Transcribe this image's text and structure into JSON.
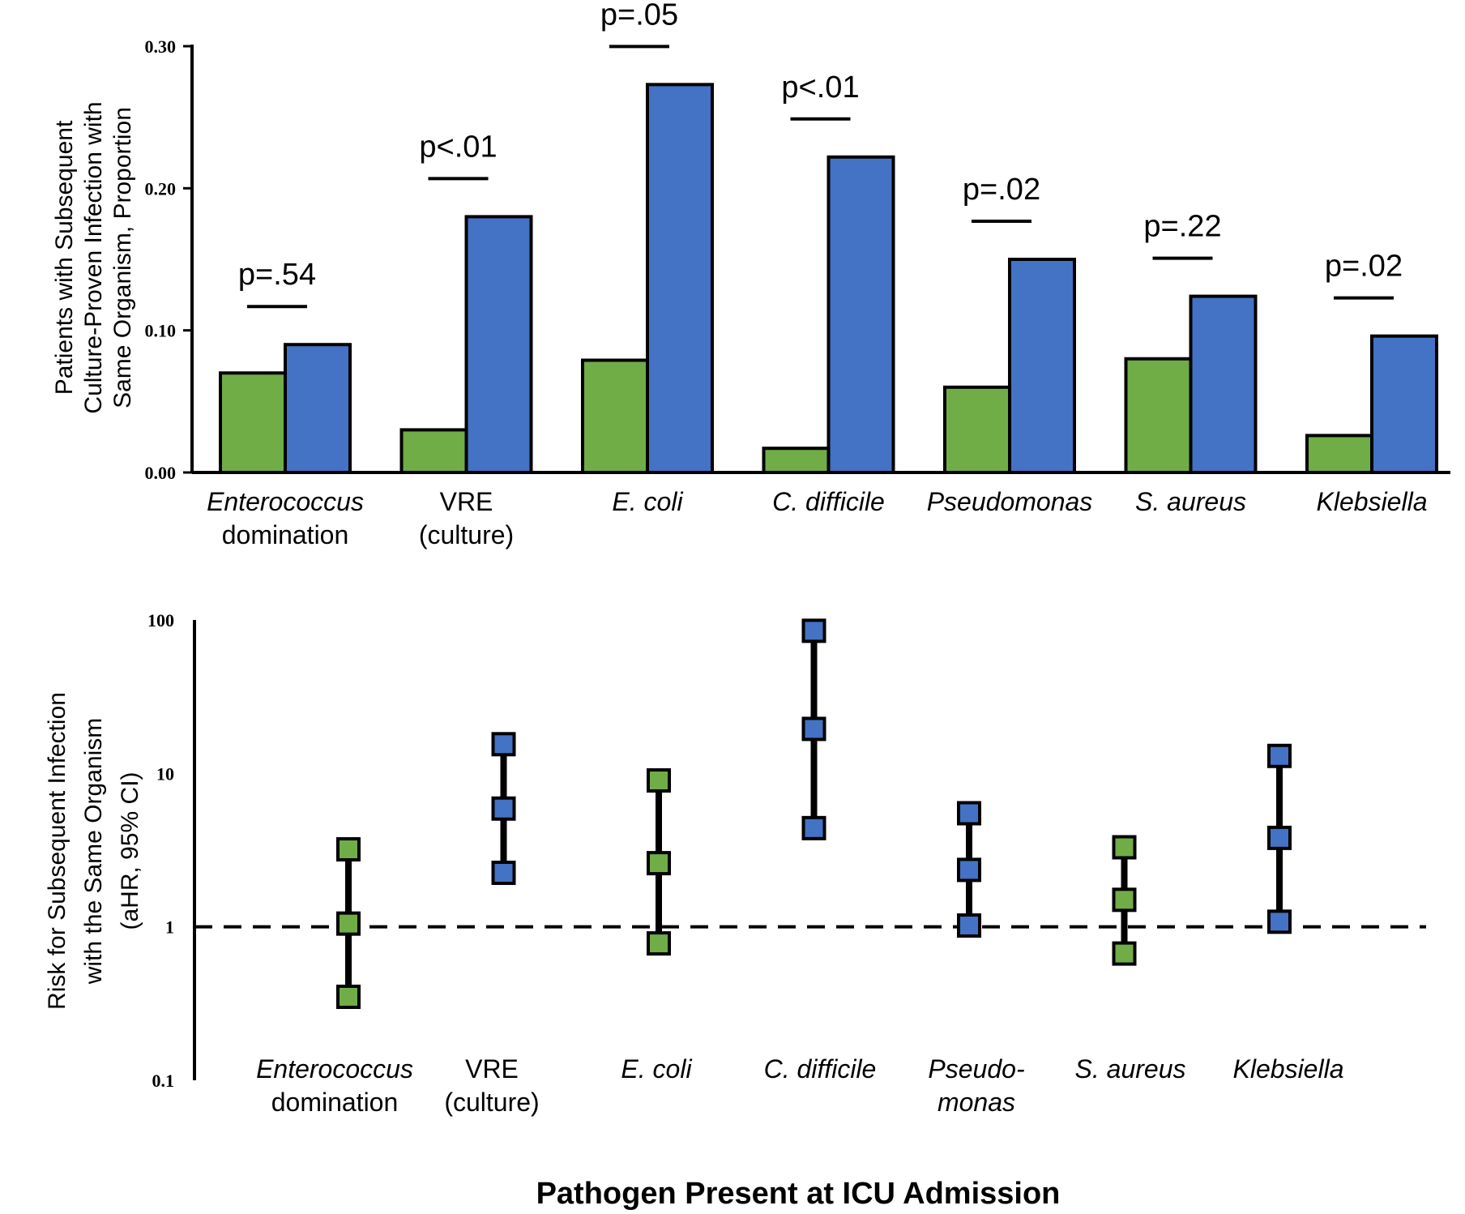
{
  "colors": {
    "green": "#70ad47",
    "blue": "#4472c4",
    "outline": "#000000"
  },
  "xlabel": "Pathogen Present at ICU Admission",
  "chart_data": [
    {
      "type": "bar",
      "ylabel_lines": [
        "Patients with Subsequent",
        "Culture-Proven  Infection with",
        "Same Organism, Proportion"
      ],
      "ylim": [
        0,
        0.3
      ],
      "yticks": [
        "0.00",
        "0.10",
        "0.20",
        "0.30"
      ],
      "categories": [
        {
          "lines": [
            "Enterococcus",
            "domination"
          ],
          "italic": [
            true,
            false
          ]
        },
        {
          "lines": [
            "VRE",
            "(culture)"
          ],
          "italic": [
            false,
            false
          ]
        },
        {
          "lines": [
            "E. coli"
          ],
          "italic": [
            true
          ]
        },
        {
          "lines": [
            "C. difficile"
          ],
          "italic": [
            true
          ]
        },
        {
          "lines": [
            "Pseudomonas"
          ],
          "italic": [
            true
          ]
        },
        {
          "lines": [
            "S. aureus"
          ],
          "italic": [
            true
          ]
        },
        {
          "lines": [
            "Klebsiella"
          ],
          "italic": [
            true
          ]
        }
      ],
      "series": [
        {
          "color": "green",
          "values": [
            0.07,
            0.03,
            0.079,
            0.017,
            0.06,
            0.08,
            0.026
          ]
        },
        {
          "color": "blue",
          "values": [
            0.09,
            0.18,
            0.273,
            0.222,
            0.15,
            0.124,
            0.096
          ]
        }
      ],
      "pvalues": [
        "p=.54",
        "p<.01",
        "p=.05",
        "p<.01",
        "p=.02",
        "p=.22",
        "p=.02"
      ]
    },
    {
      "type": "scatter",
      "scale": "log",
      "ylabel_lines": [
        "Risk for Subsequent Infection",
        "with the Same Organism",
        "(aHR, 95% CI)"
      ],
      "ylim": [
        0.1,
        100
      ],
      "yticks": [
        "0.1",
        "1",
        "10",
        "100"
      ],
      "reference_line": 1,
      "categories": [
        {
          "lines": [
            "Enterococcus",
            "domination"
          ],
          "italic": [
            true,
            false
          ]
        },
        {
          "lines": [
            "VRE",
            "(culture)"
          ],
          "italic": [
            false,
            false
          ]
        },
        {
          "lines": [
            "E. coli"
          ],
          "italic": [
            true
          ]
        },
        {
          "lines": [
            "C. difficile"
          ],
          "italic": [
            true
          ]
        },
        {
          "lines": [
            "Pseudo-",
            "monas"
          ],
          "italic": [
            true,
            true
          ]
        },
        {
          "lines": [
            "S. aureus"
          ],
          "italic": [
            true
          ]
        },
        {
          "lines": [
            "Klebsiella"
          ],
          "italic": [
            true
          ]
        }
      ],
      "points": [
        {
          "color": "green",
          "hr": 1.05,
          "low": 0.35,
          "high": 3.2
        },
        {
          "color": "blue",
          "hr": 5.9,
          "low": 2.25,
          "high": 15.5
        },
        {
          "color": "green",
          "hr": 2.6,
          "low": 0.78,
          "high": 9.0
        },
        {
          "color": "blue",
          "hr": 19.5,
          "low": 4.4,
          "high": 85
        },
        {
          "color": "blue",
          "hr": 2.35,
          "low": 1.02,
          "high": 5.5
        },
        {
          "color": "green",
          "hr": 1.5,
          "low": 0.67,
          "high": 3.3
        },
        {
          "color": "blue",
          "hr": 3.8,
          "low": 1.08,
          "high": 13.0
        }
      ]
    }
  ]
}
